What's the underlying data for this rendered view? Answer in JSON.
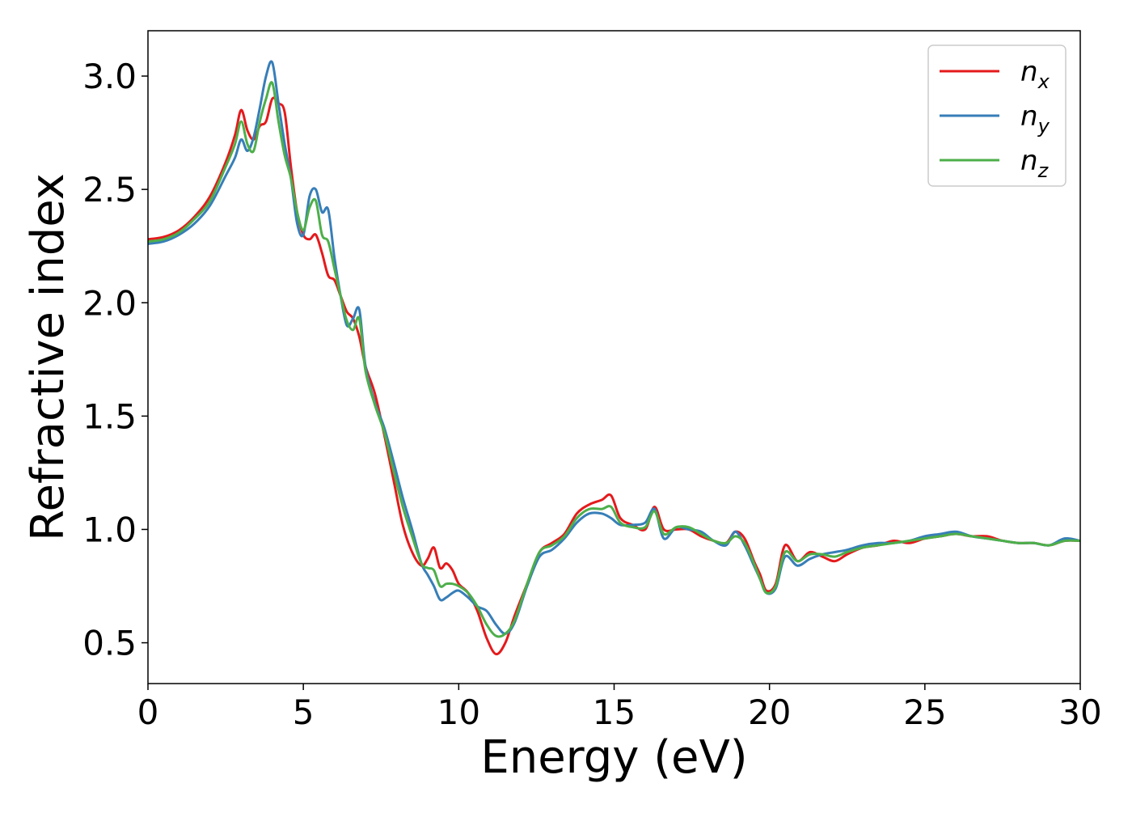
{
  "chart_data": {
    "type": "line",
    "title": "",
    "xlabel": "Energy (eV)",
    "ylabel": "Refractive index",
    "xlim": [
      0,
      30
    ],
    "ylim": [
      0.32,
      3.2
    ],
    "xticks": [
      0,
      5,
      10,
      15,
      20,
      25,
      30
    ],
    "xtick_labels": [
      "0",
      "5",
      "10",
      "15",
      "20",
      "25",
      "30"
    ],
    "yticks": [
      0.5,
      1.0,
      1.5,
      2.0,
      2.5,
      3.0
    ],
    "ytick_labels": [
      "0.5",
      "1.0",
      "1.5",
      "2.0",
      "2.5",
      "3.0"
    ],
    "grid": false,
    "legend_position": "top-right",
    "series": [
      {
        "name": "n",
        "subscript": "x",
        "color": "#e41a1c",
        "x": [
          0,
          0.5,
          1.0,
          1.5,
          2.0,
          2.5,
          2.8,
          3.0,
          3.2,
          3.4,
          3.6,
          3.8,
          4.0,
          4.2,
          4.4,
          4.6,
          4.8,
          5.0,
          5.2,
          5.4,
          5.6,
          5.8,
          6.0,
          6.2,
          6.4,
          6.6,
          6.8,
          7.0,
          7.3,
          7.6,
          7.9,
          8.2,
          8.5,
          8.8,
          9.0,
          9.2,
          9.4,
          9.6,
          9.8,
          10.0,
          10.3,
          10.6,
          10.9,
          11.2,
          11.5,
          11.8,
          12.2,
          12.6,
          13.0,
          13.4,
          13.8,
          14.2,
          14.6,
          14.9,
          15.2,
          15.6,
          16.0,
          16.3,
          16.6,
          17.0,
          17.4,
          17.8,
          18.2,
          18.6,
          18.9,
          19.2,
          19.5,
          19.7,
          19.9,
          20.2,
          20.5,
          20.9,
          21.3,
          21.7,
          22.1,
          22.5,
          23.0,
          23.5,
          24.0,
          24.5,
          25.0,
          25.5,
          26.0,
          26.5,
          27.0,
          27.5,
          28.0,
          28.5,
          29.0,
          29.5,
          30.0
        ],
        "values": [
          2.28,
          2.29,
          2.32,
          2.38,
          2.47,
          2.62,
          2.74,
          2.85,
          2.76,
          2.72,
          2.78,
          2.8,
          2.9,
          2.88,
          2.84,
          2.6,
          2.4,
          2.3,
          2.28,
          2.3,
          2.22,
          2.12,
          2.1,
          2.03,
          1.96,
          1.93,
          1.85,
          1.72,
          1.6,
          1.42,
          1.22,
          1.02,
          0.9,
          0.84,
          0.87,
          0.92,
          0.83,
          0.85,
          0.82,
          0.76,
          0.72,
          0.64,
          0.52,
          0.45,
          0.5,
          0.62,
          0.76,
          0.9,
          0.94,
          0.98,
          1.07,
          1.11,
          1.13,
          1.15,
          1.05,
          1.02,
          1.0,
          1.1,
          1.0,
          1.0,
          1.0,
          0.97,
          0.95,
          0.94,
          0.99,
          0.96,
          0.86,
          0.8,
          0.73,
          0.76,
          0.93,
          0.86,
          0.9,
          0.88,
          0.86,
          0.89,
          0.92,
          0.93,
          0.95,
          0.94,
          0.96,
          0.97,
          0.98,
          0.97,
          0.97,
          0.95,
          0.94,
          0.94,
          0.93,
          0.95,
          0.95
        ]
      },
      {
        "name": "n",
        "subscript": "y",
        "color": "#377eb8",
        "x": [
          0,
          0.5,
          1.0,
          1.5,
          2.0,
          2.5,
          2.8,
          3.0,
          3.2,
          3.4,
          3.6,
          3.8,
          4.0,
          4.2,
          4.4,
          4.6,
          4.8,
          5.0,
          5.2,
          5.4,
          5.6,
          5.8,
          6.0,
          6.2,
          6.4,
          6.6,
          6.8,
          7.0,
          7.3,
          7.6,
          7.9,
          8.2,
          8.5,
          8.8,
          9.0,
          9.2,
          9.4,
          9.6,
          9.8,
          10.0,
          10.3,
          10.6,
          10.9,
          11.2,
          11.5,
          11.8,
          12.2,
          12.6,
          13.0,
          13.4,
          13.8,
          14.2,
          14.6,
          14.9,
          15.2,
          15.6,
          16.0,
          16.3,
          16.6,
          17.0,
          17.4,
          17.8,
          18.2,
          18.6,
          18.9,
          19.2,
          19.5,
          19.7,
          19.9,
          20.2,
          20.5,
          20.9,
          21.3,
          21.7,
          22.1,
          22.5,
          23.0,
          23.5,
          24.0,
          24.5,
          25.0,
          25.5,
          26.0,
          26.5,
          27.0,
          27.5,
          28.0,
          28.5,
          29.0,
          29.5,
          30.0
        ],
        "values": [
          2.26,
          2.27,
          2.3,
          2.35,
          2.43,
          2.56,
          2.64,
          2.72,
          2.67,
          2.73,
          2.86,
          3.0,
          3.06,
          2.88,
          2.7,
          2.55,
          2.35,
          2.3,
          2.47,
          2.5,
          2.4,
          2.41,
          2.2,
          2.03,
          1.9,
          1.93,
          1.97,
          1.72,
          1.56,
          1.45,
          1.3,
          1.14,
          1.0,
          0.85,
          0.8,
          0.75,
          0.69,
          0.7,
          0.72,
          0.73,
          0.7,
          0.66,
          0.64,
          0.58,
          0.54,
          0.59,
          0.75,
          0.88,
          0.91,
          0.96,
          1.03,
          1.07,
          1.07,
          1.05,
          1.02,
          1.02,
          1.03,
          1.09,
          0.96,
          1.01,
          1.0,
          0.99,
          0.95,
          0.93,
          0.99,
          0.93,
          0.84,
          0.78,
          0.72,
          0.74,
          0.88,
          0.84,
          0.87,
          0.89,
          0.9,
          0.91,
          0.93,
          0.94,
          0.94,
          0.95,
          0.97,
          0.98,
          0.99,
          0.97,
          0.96,
          0.95,
          0.94,
          0.94,
          0.93,
          0.96,
          0.95
        ]
      },
      {
        "name": "n",
        "subscript": "z",
        "color": "#4daf4a",
        "x": [
          0,
          0.5,
          1.0,
          1.5,
          2.0,
          2.5,
          2.8,
          3.0,
          3.2,
          3.4,
          3.6,
          3.8,
          4.0,
          4.2,
          4.4,
          4.6,
          4.8,
          5.0,
          5.2,
          5.4,
          5.6,
          5.8,
          6.0,
          6.2,
          6.4,
          6.6,
          6.8,
          7.0,
          7.3,
          7.6,
          7.9,
          8.2,
          8.5,
          8.8,
          9.0,
          9.2,
          9.4,
          9.6,
          9.8,
          10.0,
          10.3,
          10.6,
          10.9,
          11.2,
          11.5,
          11.8,
          12.2,
          12.6,
          13.0,
          13.4,
          13.8,
          14.2,
          14.6,
          14.9,
          15.2,
          15.6,
          16.0,
          16.3,
          16.6,
          17.0,
          17.4,
          17.8,
          18.2,
          18.6,
          18.9,
          19.2,
          19.5,
          19.7,
          19.9,
          20.2,
          20.5,
          20.9,
          21.3,
          21.7,
          22.1,
          22.5,
          23.0,
          23.5,
          24.0,
          24.5,
          25.0,
          25.5,
          26.0,
          26.5,
          27.0,
          27.5,
          28.0,
          28.5,
          29.0,
          29.5,
          30.0
        ],
        "values": [
          2.27,
          2.28,
          2.31,
          2.37,
          2.45,
          2.6,
          2.7,
          2.8,
          2.7,
          2.67,
          2.8,
          2.9,
          2.97,
          2.8,
          2.65,
          2.55,
          2.4,
          2.32,
          2.42,
          2.45,
          2.3,
          2.27,
          2.15,
          2.03,
          1.92,
          1.88,
          1.93,
          1.7,
          1.55,
          1.43,
          1.26,
          1.1,
          0.97,
          0.85,
          0.83,
          0.82,
          0.75,
          0.76,
          0.76,
          0.75,
          0.72,
          0.66,
          0.58,
          0.53,
          0.54,
          0.6,
          0.76,
          0.9,
          0.93,
          0.97,
          1.05,
          1.09,
          1.09,
          1.1,
          1.03,
          1.01,
          1.01,
          1.08,
          0.98,
          1.01,
          1.01,
          0.98,
          0.95,
          0.94,
          0.97,
          0.94,
          0.85,
          0.78,
          0.72,
          0.75,
          0.9,
          0.86,
          0.89,
          0.89,
          0.88,
          0.9,
          0.92,
          0.93,
          0.94,
          0.95,
          0.96,
          0.97,
          0.98,
          0.97,
          0.96,
          0.95,
          0.94,
          0.94,
          0.93,
          0.95,
          0.95
        ]
      }
    ]
  }
}
